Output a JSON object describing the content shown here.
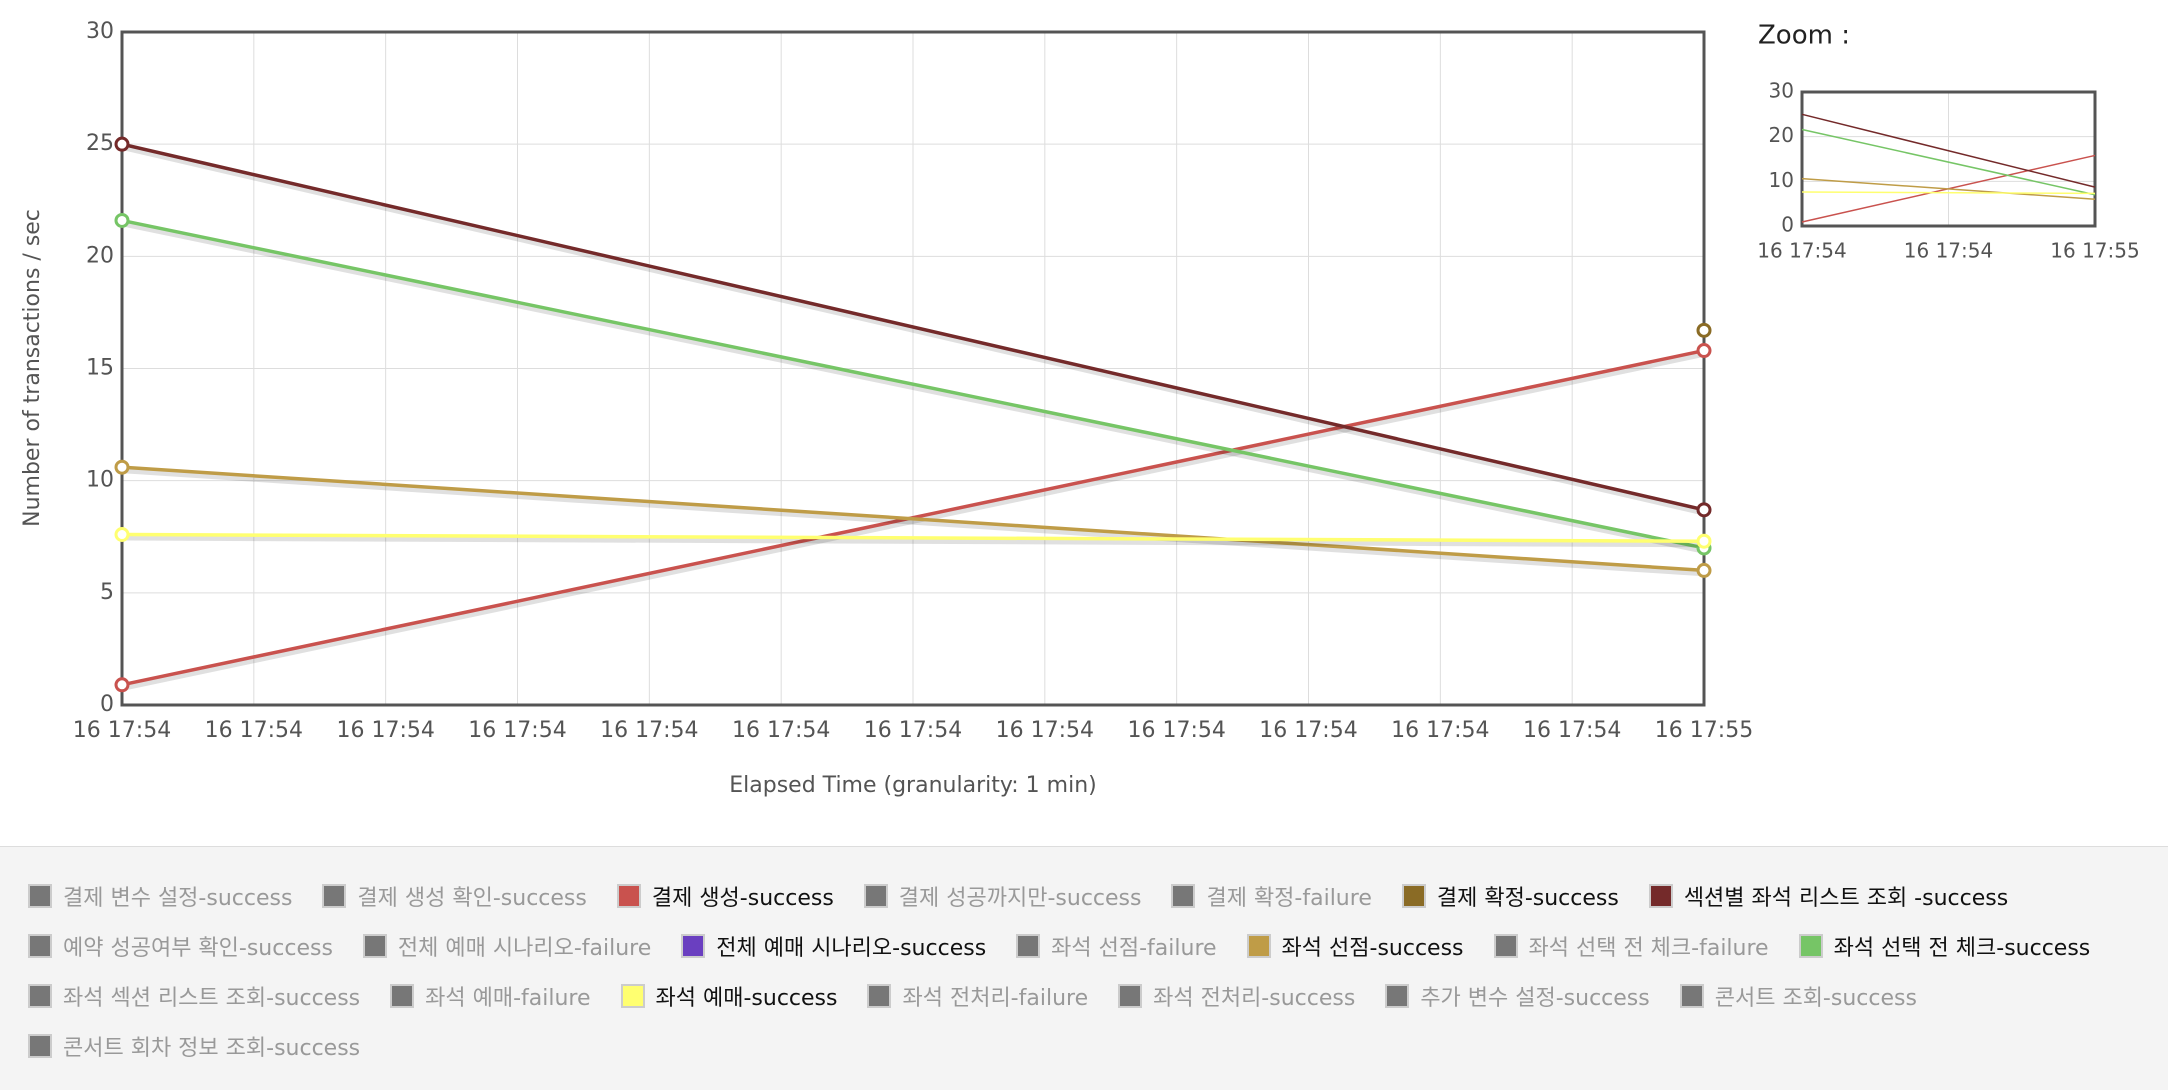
{
  "chart_data": [
    {
      "type": "line",
      "y_label": "Number of transactions / sec",
      "x_label": "Elapsed Time (granularity: 1 min)",
      "x": [
        "16 17:54",
        "16 17:55"
      ],
      "xtick_labels": [
        "16 17:54",
        "16 17:54",
        "16 17:54",
        "16 17:54",
        "16 17:54",
        "16 17:54",
        "16 17:54",
        "16 17:54",
        "16 17:54",
        "16 17:54",
        "16 17:54",
        "16 17:54",
        "16 17:55"
      ],
      "ylim": [
        0,
        30
      ],
      "yticks": [
        0,
        5,
        10,
        15,
        20,
        25,
        30
      ],
      "grid": true,
      "series": [
        {
          "name": "결제 변수 설정-success",
          "shown": false
        },
        {
          "name": "결제 생성 확인-success",
          "shown": false
        },
        {
          "name": "결제 생성-success",
          "shown": true,
          "color": "#c9524e",
          "values": [
            0.9,
            15.8
          ]
        },
        {
          "name": "결제 성공까지만-success",
          "shown": false
        },
        {
          "name": "결제 확정-failure",
          "shown": false
        },
        {
          "name": "결제 확정-success",
          "shown": true,
          "color": "#8a6b25",
          "values": [
            null,
            16.7
          ]
        },
        {
          "name": "섹션별 좌석 리스트 조회 -success",
          "shown": true,
          "color": "#742a2a",
          "values": [
            25,
            8.7
          ]
        },
        {
          "name": "예약 성공여부 확인-success",
          "shown": false
        },
        {
          "name": "전체 예매 시나리오-failure",
          "shown": false
        },
        {
          "name": "전체 예매 시나리오-success",
          "shown": true,
          "color": "#6a3fc0",
          "values": [
            null,
            null
          ]
        },
        {
          "name": "좌석 선점-failure",
          "shown": false
        },
        {
          "name": "좌석 선점-success",
          "shown": true,
          "color": "#bf9c47",
          "values": [
            10.6,
            6.0
          ]
        },
        {
          "name": "좌석 선택 전 체크-failure",
          "shown": false
        },
        {
          "name": "좌석 선택 전 체크-success",
          "shown": true,
          "color": "#76c566",
          "values": [
            21.6,
            7.0
          ]
        },
        {
          "name": "좌석 섹션 리스트 조회-success",
          "shown": false
        },
        {
          "name": "좌석 예매-failure",
          "shown": false
        },
        {
          "name": "좌석 예매-success",
          "shown": true,
          "color": "#ffff70",
          "values": [
            7.6,
            7.3
          ]
        },
        {
          "name": "좌석 전처리-failure",
          "shown": false
        },
        {
          "name": "좌석 전처리-success",
          "shown": false
        },
        {
          "name": "추가 변수 설정-success",
          "shown": false
        },
        {
          "name": "콘서트 조회-success",
          "shown": false
        },
        {
          "name": "콘서트 회차 정보 조회-success",
          "shown": false
        }
      ]
    },
    {
      "type": "zoom",
      "title": "Zoom :",
      "xtick_labels": [
        "16 17:54",
        "16 17:54",
        "16 17:55"
      ],
      "ylim": [
        0,
        30
      ],
      "yticks": [
        0,
        10,
        20,
        30
      ]
    }
  ]
}
